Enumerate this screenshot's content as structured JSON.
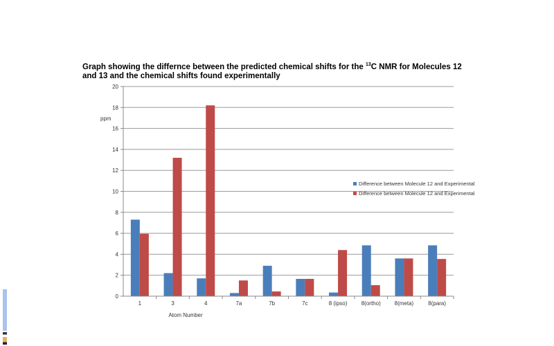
{
  "chart_data": {
    "type": "bar",
    "title_pre": "Graph showing the differnce between the predicted chemical  shifts for the ",
    "title_sup": "13",
    "title_post": "C NMR for Molecules 12 and 13 and the chemical shifts found experimentally",
    "xlabel": "Atom Number",
    "ylabel": "ppm",
    "ylim": [
      0,
      20
    ],
    "yticks": [
      0,
      2,
      4,
      6,
      8,
      10,
      12,
      14,
      16,
      18,
      20
    ],
    "grid": true,
    "legend_placement": "right",
    "categories": [
      "1",
      "3",
      "4",
      "7a",
      "7b",
      "7c",
      "8 (ipso)",
      "8(ortho)",
      "8(meta)",
      "8(para)"
    ],
    "series": [
      {
        "name": "Difference between Molecule 12 and Experimental",
        "color": "#4a7ebb",
        "values": [
          7.3,
          2.2,
          1.7,
          0.3,
          2.9,
          1.65,
          0.35,
          4.85,
          3.6,
          4.85
        ]
      },
      {
        "name": "Difference between Molecule 12 and Experimental",
        "color": "#be4b48",
        "values": [
          5.95,
          13.2,
          18.2,
          1.5,
          0.45,
          1.65,
          4.4,
          1.05,
          3.6,
          3.55
        ]
      }
    ]
  }
}
